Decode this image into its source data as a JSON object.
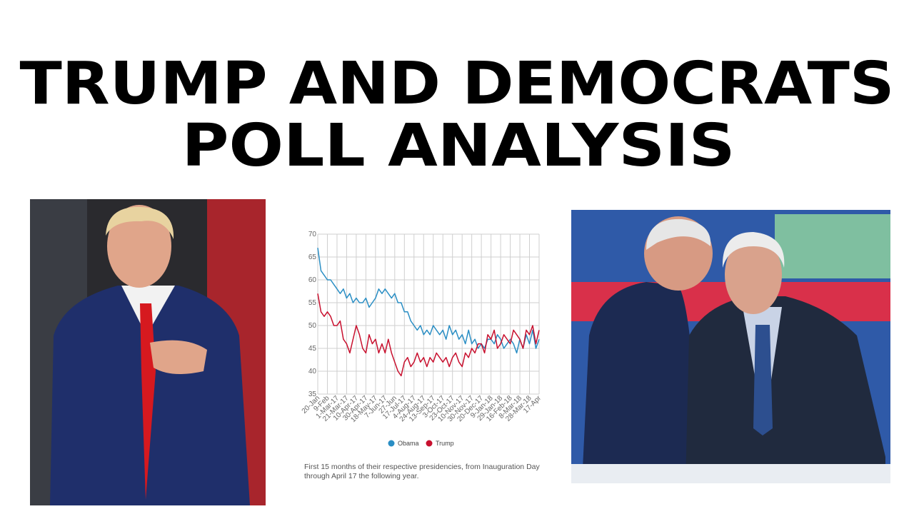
{
  "heading": [
    "TRUMP AND DEMOCRATS",
    "POLL ANALYSIS"
  ],
  "chart_data": {
    "type": "line",
    "categories": [
      "20-Jan",
      null,
      null,
      "9-Feb",
      null,
      null,
      "1-Mar-17",
      null,
      null,
      "21-Mar-17",
      null,
      null,
      "10-Apr-17",
      null,
      null,
      "30-Apr-17",
      null,
      null,
      "18-May-17",
      null,
      null,
      "7-Jun-17",
      null,
      null,
      "27-Jun",
      null,
      null,
      "17-Jul-17",
      null,
      null,
      "4-Aug-17",
      null,
      null,
      "24-Aug-17",
      null,
      null,
      "13-Sep-17",
      null,
      null,
      "3-Oct-17",
      null,
      null,
      "23-Oct-17",
      null,
      null,
      "10-Nov-17",
      null,
      null,
      "30-Nov-17",
      null,
      null,
      "20-Dec-17",
      null,
      null,
      "9-Jan-18",
      null,
      null,
      "29-Jan-18",
      null,
      null,
      "16-Feb-18",
      null,
      null,
      "8-Mar-18",
      null,
      null,
      "28-Mar-18",
      null,
      null,
      "17-Apr"
    ],
    "series": [
      {
        "name": "Obama",
        "color": "#2a8ec4",
        "values": [
          67,
          62,
          61,
          60,
          60,
          59,
          58,
          57,
          58,
          56,
          57,
          55,
          56,
          55,
          55,
          56,
          54,
          55,
          56,
          58,
          57,
          58,
          57,
          56,
          57,
          55,
          55,
          53,
          53,
          51,
          50,
          49,
          50,
          48,
          49,
          48,
          50,
          49,
          48,
          49,
          47,
          50,
          48,
          49,
          47,
          48,
          46,
          49,
          46,
          47,
          45,
          46,
          45,
          47,
          47,
          46,
          48,
          47,
          45,
          46,
          47,
          46,
          44,
          47,
          45,
          48,
          46,
          49,
          45,
          47
        ]
      },
      {
        "name": "Trump",
        "color": "#c8102e",
        "values": [
          57,
          53,
          52,
          53,
          52,
          50,
          50,
          51,
          47,
          46,
          44,
          47,
          50,
          48,
          45,
          44,
          48,
          46,
          47,
          44,
          46,
          44,
          47,
          44,
          42,
          40,
          39,
          42,
          43,
          41,
          42,
          44,
          42,
          43,
          41,
          43,
          42,
          44,
          43,
          42,
          43,
          41,
          43,
          44,
          42,
          41,
          44,
          43,
          45,
          44,
          46,
          46,
          44,
          48,
          47,
          49,
          45,
          46,
          48,
          47,
          46,
          49,
          48,
          47,
          45,
          49,
          48,
          50,
          46,
          49
        ]
      }
    ],
    "ylim": [
      35,
      70
    ],
    "yticks": [
      35,
      40,
      45,
      50,
      55,
      60,
      65,
      70
    ],
    "grid": true,
    "legend": "bottom",
    "caption": "First 15 months of their respective presidencies, from Inauguration Day through April 17 the following year."
  }
}
